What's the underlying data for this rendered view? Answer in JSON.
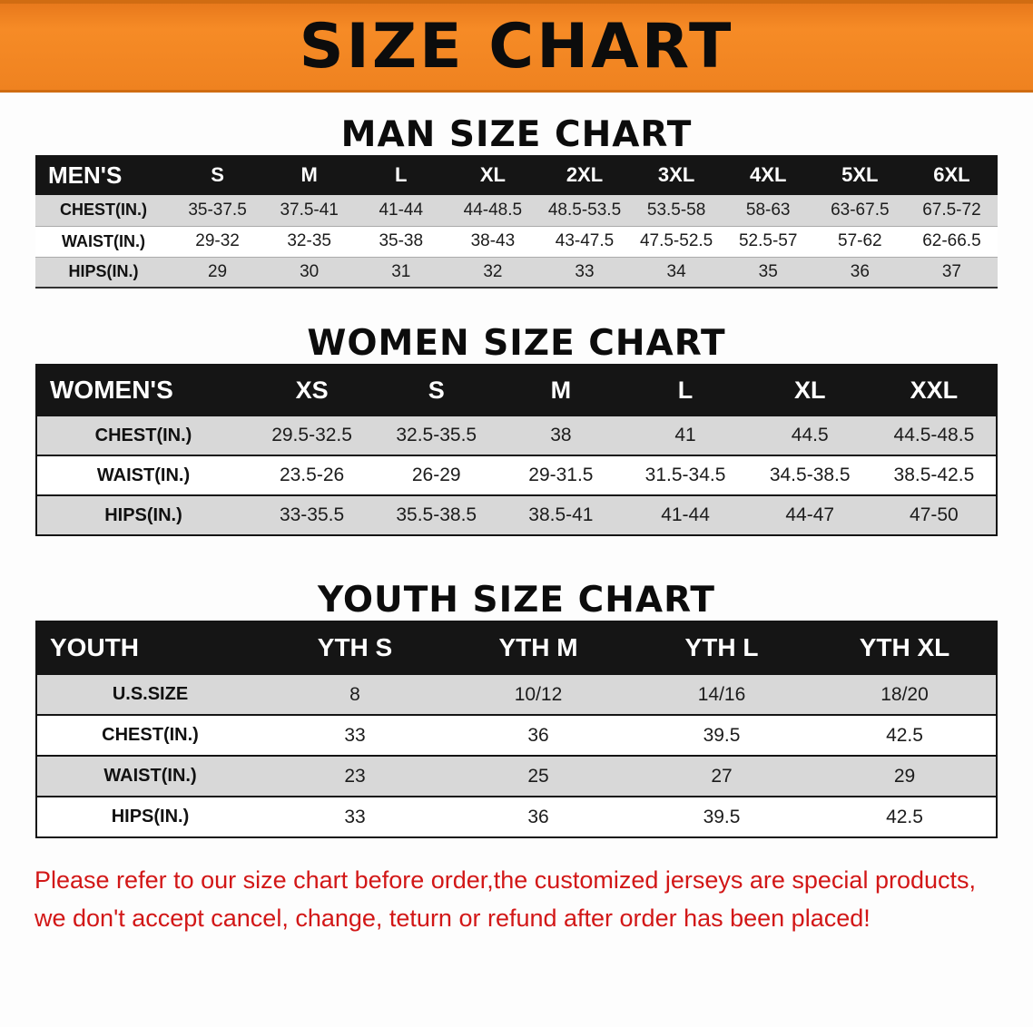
{
  "banner": {
    "title": "SIZE CHART",
    "bg_color": "#ef8220"
  },
  "colors": {
    "header_row_bg": "#151515",
    "stripe_gray": "#d8d8d8",
    "disclaimer_red": "#d21717"
  },
  "sections": [
    {
      "heading": "MAN SIZE CHART",
      "table": {
        "header": [
          "MEN'S",
          "S",
          "M",
          "L",
          "XL",
          "2XL",
          "3XL",
          "4XL",
          "5XL",
          "6XL"
        ],
        "rows": [
          [
            "CHEST(IN.)",
            "35-37.5",
            "37.5-41",
            "41-44",
            "44-48.5",
            "48.5-53.5",
            "53.5-58",
            "58-63",
            "63-67.5",
            "67.5-72"
          ],
          [
            "WAIST(IN.)",
            "29-32",
            "32-35",
            "35-38",
            "38-43",
            "43-47.5",
            "47.5-52.5",
            "52.5-57",
            "57-62",
            "62-66.5"
          ],
          [
            "HIPS(IN.)",
            "29",
            "30",
            "31",
            "32",
            "33",
            "34",
            "35",
            "36",
            "37"
          ]
        ]
      }
    },
    {
      "heading": "WOMEN SIZE CHART",
      "table": {
        "header": [
          "WOMEN'S",
          "XS",
          "S",
          "M",
          "L",
          "XL",
          "XXL"
        ],
        "rows": [
          [
            "CHEST(IN.)",
            "29.5-32.5",
            "32.5-35.5",
            "38",
            "41",
            "44.5",
            "44.5-48.5"
          ],
          [
            "WAIST(IN.)",
            "23.5-26",
            "26-29",
            "29-31.5",
            "31.5-34.5",
            "34.5-38.5",
            "38.5-42.5"
          ],
          [
            "HIPS(IN.)",
            "33-35.5",
            "35.5-38.5",
            "38.5-41",
            "41-44",
            "44-47",
            "47-50"
          ]
        ]
      }
    },
    {
      "heading": "YOUTH SIZE CHART",
      "table": {
        "header": [
          "YOUTH",
          "YTH S",
          "YTH M",
          "YTH L",
          "YTH XL"
        ],
        "rows": [
          [
            "U.S.SIZE",
            "8",
            "10/12",
            "14/16",
            "18/20"
          ],
          [
            "CHEST(IN.)",
            "33",
            "36",
            "39.5",
            "42.5"
          ],
          [
            "WAIST(IN.)",
            "23",
            "25",
            "27",
            "29"
          ],
          [
            "HIPS(IN.)",
            "33",
            "36",
            "39.5",
            "42.5"
          ]
        ]
      }
    }
  ],
  "footer": {
    "line1": "Please refer to our size chart before order,the customized jerseys are special products,",
    "line2": "we don't accept cancel, change, teturn or refund after order has been placed!"
  }
}
